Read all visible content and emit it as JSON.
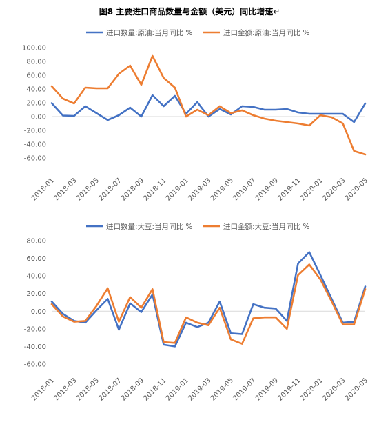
{
  "figure_title": "图8  主要进口商品数量与金额（美元）同比增速",
  "title_mark": "↵",
  "colors": {
    "series_a": "#4472C4",
    "series_b": "#ED7D31",
    "text": "#595959",
    "axis": "#D9D9D9"
  },
  "chart_data": [
    {
      "type": "line",
      "categories": [
        "2018-01",
        "2018-02",
        "2018-03",
        "2018-04",
        "2018-05",
        "2018-06",
        "2018-07",
        "2018-08",
        "2018-09",
        "2018-10",
        "2018-11",
        "2018-12",
        "2019-01",
        "2019-02",
        "2019-03",
        "2019-04",
        "2019-05",
        "2019-06",
        "2019-07",
        "2019-08",
        "2019-09",
        "2019-10",
        "2019-11",
        "2019-12",
        "2020-01",
        "2020-02",
        "2020-03",
        "2020-04",
        "2020-05"
      ],
      "tick_labels": [
        "2018-01",
        "",
        "2018-03",
        "",
        "2018-05",
        "",
        "2018-07",
        "",
        "2018-09",
        "",
        "2018-11",
        "",
        "2019-01",
        "",
        "2019-03",
        "",
        "2019-05",
        "",
        "2019-07",
        "",
        "2019-09",
        "",
        "2019-11",
        "",
        "2020-01",
        "",
        "2020-03",
        "",
        "2020-05"
      ],
      "series": [
        {
          "name": "进口数量:原油:当月同比 %",
          "color": "#4472C4",
          "values": [
            19.5,
            1.5,
            1,
            15,
            5,
            -5,
            2,
            13,
            0,
            31,
            15,
            30,
            4,
            21,
            0,
            11,
            3,
            15,
            14,
            10,
            10,
            11,
            6,
            4,
            4,
            4,
            4,
            -8,
            19
          ]
        },
        {
          "name": "进口金额:原油:当月同比 %",
          "color": "#ED7D31",
          "values": [
            44,
            26,
            19,
            42,
            41,
            41,
            62,
            74,
            46,
            88,
            56,
            42,
            0,
            10,
            2,
            15,
            5,
            9,
            2,
            -3,
            -6,
            -8,
            -10,
            -13,
            2,
            -1,
            -10,
            -50,
            -55
          ]
        }
      ],
      "ylim": [
        -60,
        100
      ],
      "yticks": [
        "100.00",
        "80.00",
        "60.00",
        "40.00",
        "20.00",
        "0.00",
        "-20.00",
        "-40.00",
        "-60.00"
      ],
      "grid": false,
      "legend": "top"
    },
    {
      "type": "line",
      "categories": [
        "2018-01",
        "2018-02",
        "2018-03",
        "2018-04",
        "2018-05",
        "2018-06",
        "2018-07",
        "2018-08",
        "2018-09",
        "2018-10",
        "2018-11",
        "2018-12",
        "2019-01",
        "2019-02",
        "2019-03",
        "2019-04",
        "2019-05",
        "2019-06",
        "2019-07",
        "2019-08",
        "2019-09",
        "2019-10",
        "2019-11",
        "2019-12",
        "2020-01",
        "2020-02",
        "2020-03",
        "2020-04",
        "2020-05"
      ],
      "tick_labels": [
        "2018-01",
        "",
        "2018-03",
        "",
        "2018-05",
        "",
        "2018-07",
        "",
        "2018-09",
        "",
        "2018-11",
        "",
        "2019-01",
        "",
        "2019-03",
        "",
        "2019-05",
        "",
        "2019-07",
        "",
        "2019-09",
        "",
        "2019-11",
        "",
        "2020-01",
        "",
        "2020-03",
        "",
        "2020-05"
      ],
      "series": [
        {
          "name": "进口数量:大豆:当月同比 %",
          "color": "#4472C4",
          "values": [
            11,
            -3,
            -11,
            -13,
            1,
            14,
            -21,
            9,
            -1,
            19,
            -38,
            -40,
            -13,
            -18,
            -13,
            11,
            -25,
            -26,
            8,
            4,
            3,
            -11,
            54,
            67,
            41,
            14,
            -13,
            -12,
            28
          ]
        },
        {
          "name": "进口金额:大豆:当月同比 %",
          "color": "#ED7D31",
          "values": [
            8,
            -6,
            -12,
            -11,
            6,
            26,
            -12,
            16,
            4,
            25,
            -35,
            -36,
            -7,
            -13,
            -16,
            4,
            -32,
            -37,
            -8,
            -7,
            -7,
            -20,
            41,
            53,
            36,
            11,
            -15,
            -15,
            25
          ]
        }
      ],
      "ylim": [
        -60,
        80
      ],
      "yticks": [
        "80.00",
        "60.00",
        "40.00",
        "20.00",
        "0.00",
        "-20.00",
        "-40.00",
        "-60.00"
      ],
      "grid": false,
      "legend": "top"
    }
  ]
}
